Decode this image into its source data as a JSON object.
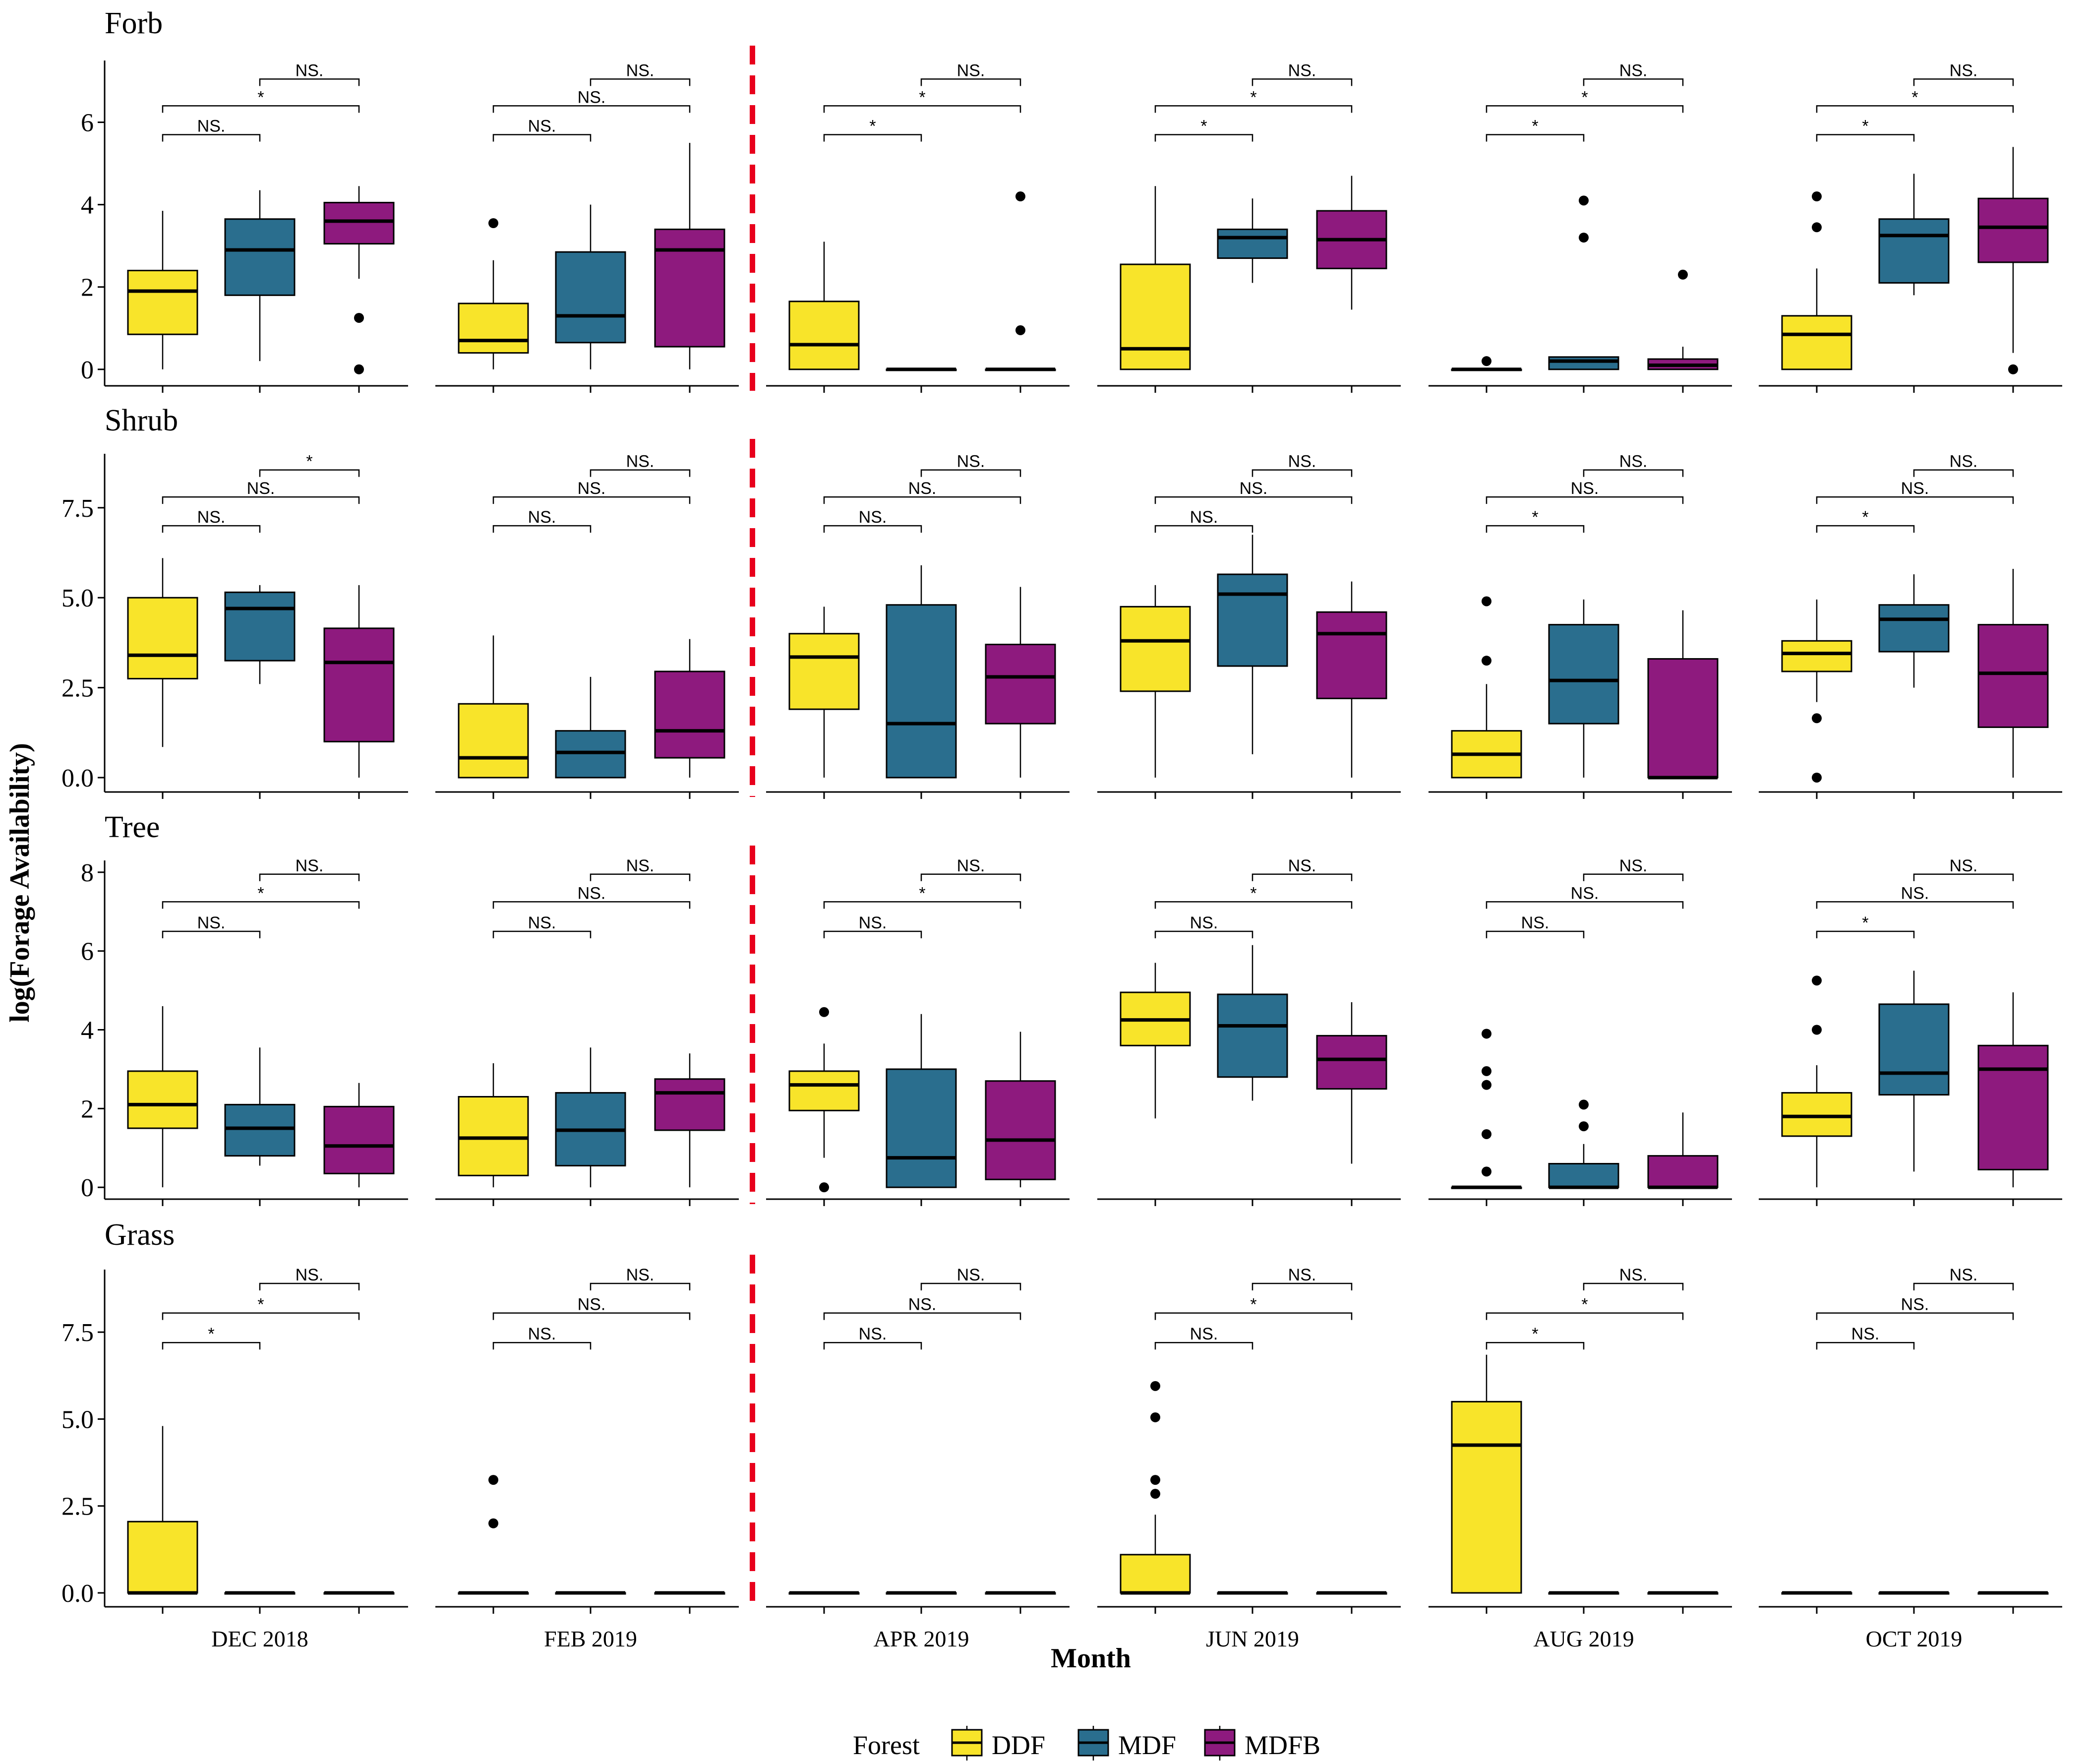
{
  "chart_data": {
    "type": "boxplot",
    "xlabel": "Month",
    "ylabel": "log(Forage Availability)",
    "months": [
      "DEC 2018",
      "FEB 2019",
      "APR 2019",
      "JUN 2019",
      "AUG 2019",
      "OCT 2019"
    ],
    "groups": [
      "DDF",
      "MDF",
      "MDFB"
    ],
    "colors": {
      "DDF": "#F8E42A",
      "MDF": "#2A6E8E",
      "MDFB": "#8E1A7E"
    },
    "divider_after_month": "FEB 2019",
    "legend": {
      "title": "Forest",
      "entries": [
        "DDF",
        "MDF",
        "MDFB"
      ],
      "position": "bottom"
    },
    "comparisons": [
      [
        "DDF",
        "MDF"
      ],
      [
        "DDF",
        "MDFB"
      ],
      [
        "MDF",
        "MDFB"
      ]
    ],
    "rows": [
      {
        "title": "Forb",
        "ylim": [
          -0.4,
          7.5
        ],
        "yticks": [
          0,
          2,
          4,
          6
        ],
        "ytick_labels": [
          "0",
          "2",
          "4",
          "6"
        ],
        "sig_levels": [
          5.7,
          6.4,
          7.05
        ],
        "boxes": [
          [
            {
              "min": 0,
              "q1": 0.85,
              "med": 1.9,
              "q3": 2.4,
              "max": 3.85,
              "out": []
            },
            {
              "min": 0.2,
              "q1": 1.8,
              "med": 2.9,
              "q3": 3.65,
              "max": 4.35,
              "out": []
            },
            {
              "min": 2.2,
              "q1": 3.05,
              "med": 3.6,
              "q3": 4.05,
              "max": 4.45,
              "out": [
                1.25,
                0
              ]
            }
          ],
          [
            {
              "min": 0,
              "q1": 0.4,
              "med": 0.7,
              "q3": 1.6,
              "max": 2.65,
              "out": [
                3.55
              ]
            },
            {
              "min": 0,
              "q1": 0.65,
              "med": 1.3,
              "q3": 2.85,
              "max": 4.0,
              "out": []
            },
            {
              "min": 0,
              "q1": 0.55,
              "med": 2.9,
              "q3": 3.4,
              "max": 5.5,
              "out": []
            }
          ],
          [
            {
              "min": 0,
              "q1": 0,
              "med": 0.6,
              "q3": 1.65,
              "max": 3.1,
              "out": []
            },
            {
              "min": 0,
              "q1": 0,
              "med": 0,
              "q3": 0,
              "max": 0,
              "out": []
            },
            {
              "min": 0,
              "q1": 0,
              "med": 0,
              "q3": 0,
              "max": 0,
              "out": [
                0.95,
                4.2
              ]
            }
          ],
          [
            {
              "min": 0,
              "q1": 0,
              "med": 0.5,
              "q3": 2.55,
              "max": 4.45,
              "out": []
            },
            {
              "min": 2.1,
              "q1": 2.7,
              "med": 3.2,
              "q3": 3.4,
              "max": 4.15,
              "out": []
            },
            {
              "min": 1.45,
              "q1": 2.45,
              "med": 3.15,
              "q3": 3.85,
              "max": 4.7,
              "out": []
            }
          ],
          [
            {
              "min": 0,
              "q1": 0,
              "med": 0,
              "q3": 0,
              "max": 0,
              "out": [
                0.2
              ]
            },
            {
              "min": 0,
              "q1": 0,
              "med": 0.2,
              "q3": 0.3,
              "max": 0.3,
              "out": [
                3.2,
                4.1
              ]
            },
            {
              "min": 0,
              "q1": 0,
              "med": 0.1,
              "q3": 0.25,
              "max": 0.55,
              "out": [
                2.3
              ]
            }
          ],
          [
            {
              "min": 0,
              "q1": 0,
              "med": 0.85,
              "q3": 1.3,
              "max": 2.45,
              "out": [
                3.45,
                4.2
              ]
            },
            {
              "min": 1.8,
              "q1": 2.1,
              "med": 3.25,
              "q3": 3.65,
              "max": 4.75,
              "out": []
            },
            {
              "min": 0.4,
              "q1": 2.6,
              "med": 3.45,
              "q3": 4.15,
              "max": 5.4,
              "out": [
                0
              ]
            }
          ]
        ],
        "sig": [
          [
            "NS.",
            "*",
            "NS."
          ],
          [
            "NS.",
            "NS.",
            "NS."
          ],
          [
            "*",
            "*",
            "NS."
          ],
          [
            "*",
            "*",
            "NS."
          ],
          [
            "*",
            "*",
            "NS."
          ],
          [
            "*",
            "*",
            "NS."
          ]
        ]
      },
      {
        "title": "Shrub",
        "ylim": [
          -0.4,
          9.0
        ],
        "yticks": [
          0,
          2.5,
          5,
          7.5
        ],
        "ytick_labels": [
          "0.0",
          "2.5",
          "5.0",
          "7.5"
        ],
        "sig_levels": [
          7.0,
          7.8,
          8.55
        ],
        "boxes": [
          [
            {
              "min": 0.85,
              "q1": 2.75,
              "med": 3.4,
              "q3": 5.0,
              "max": 6.1,
              "out": []
            },
            {
              "min": 2.6,
              "q1": 3.25,
              "med": 4.7,
              "q3": 5.15,
              "max": 5.35,
              "out": []
            },
            {
              "min": 0,
              "q1": 1.0,
              "med": 3.2,
              "q3": 4.15,
              "max": 5.35,
              "out": []
            }
          ],
          [
            {
              "min": 0,
              "q1": 0,
              "med": 0.55,
              "q3": 2.05,
              "max": 3.95,
              "out": []
            },
            {
              "min": 0,
              "q1": 0,
              "med": 0.7,
              "q3": 1.3,
              "max": 2.8,
              "out": []
            },
            {
              "min": 0,
              "q1": 0.55,
              "med": 1.3,
              "q3": 2.95,
              "max": 3.85,
              "out": []
            }
          ],
          [
            {
              "min": 0,
              "q1": 1.9,
              "med": 3.35,
              "q3": 4.0,
              "max": 4.75,
              "out": []
            },
            {
              "min": 0,
              "q1": 0,
              "med": 1.5,
              "q3": 4.8,
              "max": 5.9,
              "out": []
            },
            {
              "min": 0,
              "q1": 1.5,
              "med": 2.8,
              "q3": 3.7,
              "max": 5.3,
              "out": []
            }
          ],
          [
            {
              "min": 0,
              "q1": 2.4,
              "med": 3.8,
              "q3": 4.75,
              "max": 5.35,
              "out": []
            },
            {
              "min": 0.65,
              "q1": 3.1,
              "med": 5.1,
              "q3": 5.65,
              "max": 6.75,
              "out": []
            },
            {
              "min": 0,
              "q1": 2.2,
              "med": 4.0,
              "q3": 4.6,
              "max": 5.45,
              "out": []
            }
          ],
          [
            {
              "min": 0,
              "q1": 0,
              "med": 0.65,
              "q3": 1.3,
              "max": 2.6,
              "out": [
                3.25,
                4.9
              ]
            },
            {
              "min": 0,
              "q1": 1.5,
              "med": 2.7,
              "q3": 4.25,
              "max": 4.95,
              "out": []
            },
            {
              "min": 0,
              "q1": 0,
              "med": 0,
              "q3": 3.3,
              "max": 4.65,
              "out": []
            }
          ],
          [
            {
              "min": 2.1,
              "q1": 2.95,
              "med": 3.45,
              "q3": 3.8,
              "max": 4.95,
              "out": [
                1.65,
                0
              ]
            },
            {
              "min": 2.5,
              "q1": 3.5,
              "med": 4.4,
              "q3": 4.8,
              "max": 5.65,
              "out": []
            },
            {
              "min": 0,
              "q1": 1.4,
              "med": 2.9,
              "q3": 4.25,
              "max": 5.8,
              "out": []
            }
          ]
        ],
        "sig": [
          [
            "NS.",
            "NS.",
            "*"
          ],
          [
            "NS.",
            "NS.",
            "NS."
          ],
          [
            "NS.",
            "NS.",
            "NS."
          ],
          [
            "NS.",
            "NS.",
            "NS."
          ],
          [
            "*",
            "NS.",
            "NS."
          ],
          [
            "*",
            "NS.",
            "NS."
          ]
        ]
      },
      {
        "title": "Tree",
        "ylim": [
          -0.3,
          8.3
        ],
        "yticks": [
          0,
          2,
          4,
          6,
          8
        ],
        "ytick_labels": [
          "0",
          "2",
          "4",
          "6",
          "8"
        ],
        "sig_levels": [
          6.5,
          7.25,
          7.95
        ],
        "boxes": [
          [
            {
              "min": 0,
              "q1": 1.5,
              "med": 2.1,
              "q3": 2.95,
              "max": 4.6,
              "out": []
            },
            {
              "min": 0.55,
              "q1": 0.8,
              "med": 1.5,
              "q3": 2.1,
              "max": 3.55,
              "out": []
            },
            {
              "min": 0,
              "q1": 0.35,
              "med": 1.05,
              "q3": 2.05,
              "max": 2.65,
              "out": []
            }
          ],
          [
            {
              "min": 0,
              "q1": 0.3,
              "med": 1.25,
              "q3": 2.3,
              "max": 3.15,
              "out": []
            },
            {
              "min": 0,
              "q1": 0.55,
              "med": 1.45,
              "q3": 2.4,
              "max": 3.55,
              "out": []
            },
            {
              "min": 0,
              "q1": 1.45,
              "med": 2.4,
              "q3": 2.75,
              "max": 3.4,
              "out": []
            }
          ],
          [
            {
              "min": 0.75,
              "q1": 1.95,
              "med": 2.6,
              "q3": 2.95,
              "max": 3.65,
              "out": [
                4.45,
                0
              ]
            },
            {
              "min": 0,
              "q1": 0,
              "med": 0.75,
              "q3": 3.0,
              "max": 4.4,
              "out": []
            },
            {
              "min": 0,
              "q1": 0.2,
              "med": 1.2,
              "q3": 2.7,
              "max": 3.95,
              "out": []
            }
          ],
          [
            {
              "min": 1.75,
              "q1": 3.6,
              "med": 4.25,
              "q3": 4.95,
              "max": 5.7,
              "out": []
            },
            {
              "min": 2.2,
              "q1": 2.8,
              "med": 4.1,
              "q3": 4.9,
              "max": 6.15,
              "out": []
            },
            {
              "min": 0.6,
              "q1": 2.5,
              "med": 3.25,
              "q3": 3.85,
              "max": 4.7,
              "out": []
            }
          ],
          [
            {
              "min": 0,
              "q1": 0,
              "med": 0,
              "q3": 0,
              "max": 0,
              "out": [
                0.4,
                1.35,
                2.6,
                2.95,
                3.9
              ]
            },
            {
              "min": 0,
              "q1": 0,
              "med": 0,
              "q3": 0.6,
              "max": 1.1,
              "out": [
                1.55,
                2.1
              ]
            },
            {
              "min": 0,
              "q1": 0,
              "med": 0,
              "q3": 0.8,
              "max": 1.9,
              "out": []
            }
          ],
          [
            {
              "min": 0,
              "q1": 1.3,
              "med": 1.8,
              "q3": 2.4,
              "max": 3.1,
              "out": [
                4.0,
                5.25
              ]
            },
            {
              "min": 0.4,
              "q1": 2.35,
              "med": 2.9,
              "q3": 4.65,
              "max": 5.5,
              "out": []
            },
            {
              "min": 0,
              "q1": 0.45,
              "med": 3.0,
              "q3": 3.6,
              "max": 4.95,
              "out": []
            }
          ]
        ],
        "sig": [
          [
            "NS.",
            "*",
            "NS."
          ],
          [
            "NS.",
            "NS.",
            "NS."
          ],
          [
            "NS.",
            "*",
            "NS."
          ],
          [
            "NS.",
            "*",
            "NS."
          ],
          [
            "NS.",
            "NS.",
            "NS."
          ],
          [
            "*",
            "NS.",
            "NS."
          ]
        ]
      },
      {
        "title": "Grass",
        "ylim": [
          -0.4,
          9.3
        ],
        "yticks": [
          0,
          2.5,
          5,
          7.5
        ],
        "ytick_labels": [
          "0.0",
          "2.5",
          "5.0",
          "7.5"
        ],
        "sig_levels": [
          7.2,
          8.05,
          8.9
        ],
        "boxes": [
          [
            {
              "min": 0,
              "q1": 0,
              "med": 0,
              "q3": 2.05,
              "max": 4.8,
              "out": []
            },
            {
              "min": 0,
              "q1": 0,
              "med": 0,
              "q3": 0,
              "max": 0,
              "out": []
            },
            {
              "min": 0,
              "q1": 0,
              "med": 0,
              "q3": 0,
              "max": 0,
              "out": []
            }
          ],
          [
            {
              "min": 0,
              "q1": 0,
              "med": 0,
              "q3": 0,
              "max": 0,
              "out": [
                2.0,
                3.25
              ]
            },
            {
              "min": 0,
              "q1": 0,
              "med": 0,
              "q3": 0,
              "max": 0,
              "out": []
            },
            {
              "min": 0,
              "q1": 0,
              "med": 0,
              "q3": 0,
              "max": 0,
              "out": []
            }
          ],
          [
            {
              "min": 0,
              "q1": 0,
              "med": 0,
              "q3": 0,
              "max": 0,
              "out": []
            },
            {
              "min": 0,
              "q1": 0,
              "med": 0,
              "q3": 0,
              "max": 0,
              "out": []
            },
            {
              "min": 0,
              "q1": 0,
              "med": 0,
              "q3": 0,
              "max": 0,
              "out": []
            }
          ],
          [
            {
              "min": 0,
              "q1": 0,
              "med": 0,
              "q3": 1.1,
              "max": 2.25,
              "out": [
                2.85,
                3.25,
                5.05,
                5.95
              ]
            },
            {
              "min": 0,
              "q1": 0,
              "med": 0,
              "q3": 0,
              "max": 0,
              "out": []
            },
            {
              "min": 0,
              "q1": 0,
              "med": 0,
              "q3": 0,
              "max": 0,
              "out": []
            }
          ],
          [
            {
              "min": 0,
              "q1": 0,
              "med": 4.25,
              "q3": 5.5,
              "max": 6.85,
              "out": []
            },
            {
              "min": 0,
              "q1": 0,
              "med": 0,
              "q3": 0,
              "max": 0,
              "out": []
            },
            {
              "min": 0,
              "q1": 0,
              "med": 0,
              "q3": 0,
              "max": 0,
              "out": []
            }
          ],
          [
            {
              "min": 0,
              "q1": 0,
              "med": 0,
              "q3": 0,
              "max": 0,
              "out": []
            },
            {
              "min": 0,
              "q1": 0,
              "med": 0,
              "q3": 0,
              "max": 0,
              "out": []
            },
            {
              "min": 0,
              "q1": 0,
              "med": 0,
              "q3": 0,
              "max": 0,
              "out": []
            }
          ]
        ],
        "sig": [
          [
            "*",
            "*",
            "NS."
          ],
          [
            "NS.",
            "NS.",
            "NS."
          ],
          [
            "NS.",
            "NS.",
            "NS."
          ],
          [
            "NS.",
            "*",
            "NS."
          ],
          [
            "*",
            "*",
            "NS."
          ],
          [
            "NS.",
            "NS.",
            "NS."
          ]
        ]
      }
    ]
  }
}
